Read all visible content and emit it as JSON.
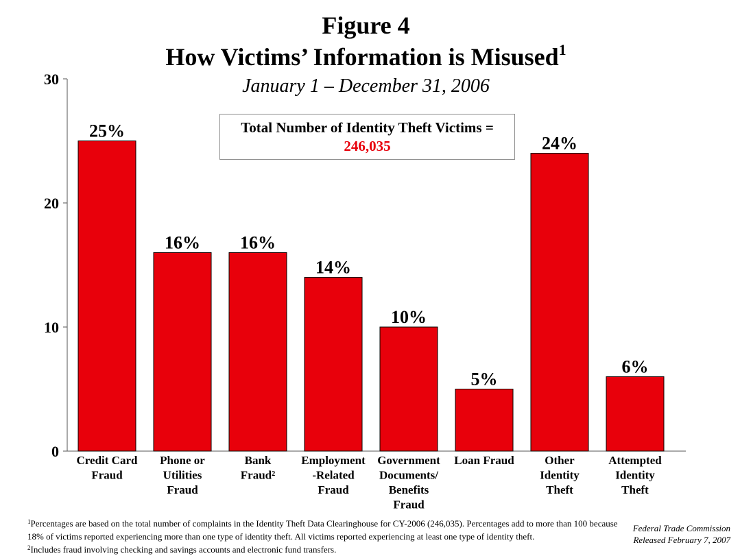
{
  "header": {
    "figure": "Figure 4",
    "title": "How Victims’ Information is Misused",
    "title_sup": "1",
    "subtitle": "January 1 – December 31, 2006"
  },
  "total_box": {
    "label": "Total Number of Identity Theft Victims =",
    "value": "246,035",
    "value_color": "#e8000b"
  },
  "chart_data": {
    "type": "bar",
    "categories": [
      [
        "Credit Card",
        "Fraud"
      ],
      [
        "Phone or",
        "Utilities",
        "Fraud"
      ],
      [
        "Bank",
        "Fraud²"
      ],
      [
        "Employment",
        "-Related",
        "Fraud"
      ],
      [
        "Government",
        "Documents/",
        "Benefits",
        "Fraud"
      ],
      [
        "Loan Fraud"
      ],
      [
        "Other",
        "Identity",
        "Theft"
      ],
      [
        "Attempted",
        "Identity",
        "Theft"
      ]
    ],
    "values": [
      25,
      16,
      16,
      14,
      10,
      5,
      24,
      6
    ],
    "data_labels": [
      "25%",
      "16%",
      "16%",
      "14%",
      "10%",
      "5%",
      "24%",
      "6%"
    ],
    "ylim": [
      0,
      30
    ],
    "yticks": [
      0,
      10,
      20,
      30
    ],
    "bar_color": "#e8000b",
    "grid": false,
    "xlabel": "",
    "ylabel": ""
  },
  "footnotes": {
    "note1_sup": "1",
    "note1": "Percentages are based on the total number of complaints in the Identity Theft Data Clearinghouse for CY-2006 (246,035).  Percentages add to more than 100 because 18% of victims reported experiencing more than one type of identity theft.  All victims reported experiencing at least one type of identity theft.",
    "note2_sup": "2",
    "note2": "Includes fraud involving checking and savings accounts and electronic fund transfers."
  },
  "source": {
    "line1": "Federal Trade Commission",
    "line2": "Released February 7, 2007"
  }
}
